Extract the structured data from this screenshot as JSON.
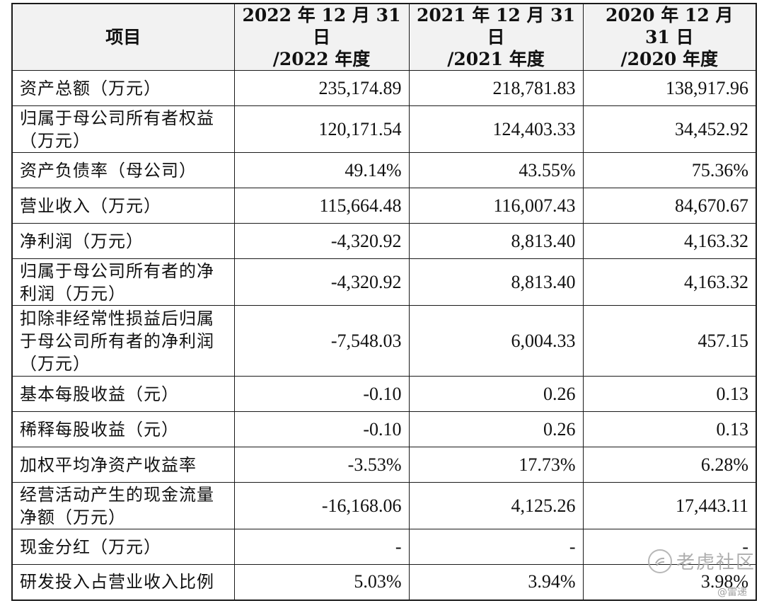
{
  "table": {
    "headers": [
      "项目",
      "2022 年 12 月 31 日\n/2022 年度",
      "2021 年 12 月 31 日\n/2021 年度",
      "2020 年 12 月 31 日\n/2020 年度"
    ],
    "rows": [
      {
        "label": "资产总额（万元）",
        "values": [
          "235,174.89",
          "218,781.83",
          "138,917.96"
        ]
      },
      {
        "label": "归属于母公司所有者权益（万元）",
        "values": [
          "120,171.54",
          "124,403.33",
          "34,452.92"
        ]
      },
      {
        "label": "资产负债率（母公司）",
        "values": [
          "49.14%",
          "43.55%",
          "75.36%"
        ]
      },
      {
        "label": "营业收入（万元）",
        "values": [
          "115,664.48",
          "116,007.43",
          "84,670.67"
        ]
      },
      {
        "label": "净利润（万元）",
        "values": [
          "-4,320.92",
          "8,813.40",
          "4,163.32"
        ]
      },
      {
        "label": "归属于母公司所有者的净利润（万元）",
        "values": [
          "-4,320.92",
          "8,813.40",
          "4,163.32"
        ]
      },
      {
        "label": "扣除非经常性损益后归属于母公司所有者的净利润（万元）",
        "values": [
          "-7,548.03",
          "6,004.33",
          "457.15"
        ]
      },
      {
        "label": "基本每股收益（元）",
        "values": [
          "-0.10",
          "0.26",
          "0.13"
        ]
      },
      {
        "label": "稀释每股收益（元）",
        "values": [
          "-0.10",
          "0.26",
          "0.13"
        ]
      },
      {
        "label": "加权平均净资产收益率",
        "values": [
          "-3.53%",
          "17.73%",
          "6.28%"
        ]
      },
      {
        "label": "经营活动产生的现金流量净额（万元）",
        "values": [
          "-16,168.06",
          "4,125.26",
          "17,443.11"
        ]
      },
      {
        "label": "现金分红（万元）",
        "values": [
          "-",
          "-",
          "-"
        ]
      },
      {
        "label": "研发投入占营业收入比例",
        "values": [
          "5.03%",
          "3.94%",
          "3.98%"
        ]
      }
    ]
  },
  "watermark": {
    "text": "老虎社区",
    "sub": "@雷递",
    "icon": "tiger-community-logo-icon"
  }
}
